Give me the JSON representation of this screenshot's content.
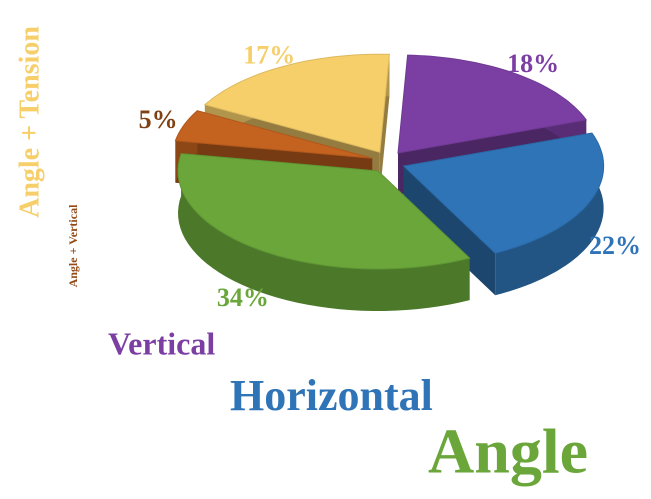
{
  "chart_data": {
    "type": "pie",
    "categories": [
      "Angle + Tension",
      "Vertical",
      "Horizontal",
      "Angle",
      "Angle + Vertical"
    ],
    "values": [
      17,
      18,
      22,
      34,
      5
    ],
    "value_labels": [
      "17%",
      "18%",
      "22%",
      "34%",
      "5%"
    ],
    "colors": [
      "#f6cf6a",
      "#7b3fa3",
      "#2f74b7",
      "#6aa63a",
      "#c4621f"
    ]
  }
}
